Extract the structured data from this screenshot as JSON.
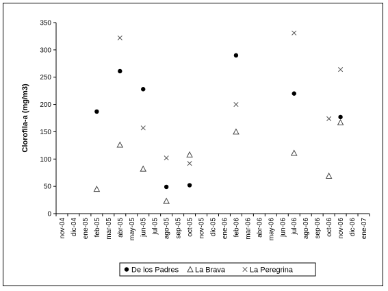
{
  "chart_data": {
    "type": "scatter",
    "title": "",
    "xlabel": "",
    "ylabel": "Clorofila-a (mg/m3)",
    "ylim": [
      0,
      350
    ],
    "yticks": [
      0,
      50,
      100,
      150,
      200,
      250,
      300,
      350
    ],
    "x_categories": [
      "nov-04",
      "dic-04",
      "ene-05",
      "feb-05",
      "mar-05",
      "abr-05",
      "may-05",
      "jun-05",
      "jul-05",
      "ago-05",
      "sep-05",
      "oct-05",
      "nov-05",
      "dic-05",
      "ene-06",
      "feb-06",
      "mar-06",
      "abr-06",
      "may-06",
      "jun-06",
      "jul-06",
      "ago-06",
      "sep-06",
      "oct-06",
      "nov-06",
      "dic-06",
      "ene-07"
    ],
    "grid": false,
    "legend_position": "bottom",
    "series": [
      {
        "name": "De los Padres",
        "marker": "dot",
        "color": "#000000",
        "points": [
          {
            "x": "feb-05",
            "y": 187
          },
          {
            "x": "abr-05",
            "y": 261
          },
          {
            "x": "jun-05",
            "y": 228
          },
          {
            "x": "ago-05",
            "y": 49
          },
          {
            "x": "oct-05",
            "y": 52
          },
          {
            "x": "feb-06",
            "y": 290
          },
          {
            "x": "jul-06",
            "y": 220
          },
          {
            "x": "nov-06",
            "y": 177
          }
        ]
      },
      {
        "name": "La Brava",
        "marker": "triangle",
        "color": "#444444",
        "points": [
          {
            "x": "feb-05",
            "y": 45
          },
          {
            "x": "abr-05",
            "y": 126
          },
          {
            "x": "jun-05",
            "y": 82
          },
          {
            "x": "ago-05",
            "y": 23
          },
          {
            "x": "oct-05",
            "y": 108
          },
          {
            "x": "feb-06",
            "y": 150
          },
          {
            "x": "jul-06",
            "y": 111
          },
          {
            "x": "oct-06",
            "y": 69
          },
          {
            "x": "nov-06",
            "y": 167
          }
        ]
      },
      {
        "name": "La Peregrina",
        "marker": "cross",
        "color": "#555555",
        "points": [
          {
            "x": "abr-05",
            "y": 322
          },
          {
            "x": "jun-05",
            "y": 157
          },
          {
            "x": "ago-05",
            "y": 102
          },
          {
            "x": "oct-05",
            "y": 92
          },
          {
            "x": "feb-06",
            "y": 200
          },
          {
            "x": "jul-06",
            "y": 331
          },
          {
            "x": "oct-06",
            "y": 174
          },
          {
            "x": "nov-06",
            "y": 264
          }
        ]
      }
    ]
  }
}
